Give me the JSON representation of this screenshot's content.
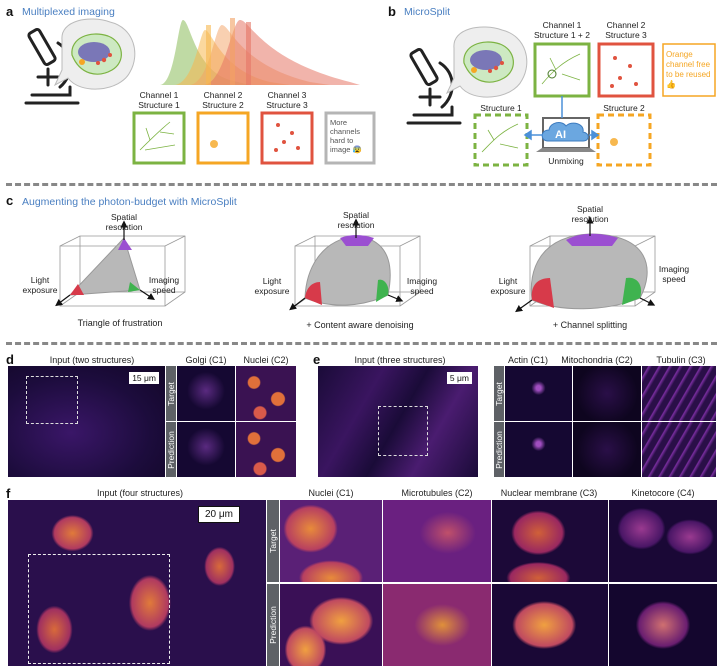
{
  "panels": {
    "a": {
      "letter": "a",
      "title": "Multiplexed imaging",
      "channels": [
        {
          "ch": "Channel 1",
          "st": "Structure 1"
        },
        {
          "ch": "Channel 2",
          "st": "Structure 2"
        },
        {
          "ch": "Channel 3",
          "st": "Structure 3"
        }
      ],
      "more_text": "More channels hard to image 😰"
    },
    "b": {
      "letter": "b",
      "title": "MicroSplit",
      "ch1": "Channel 1",
      "st12": "Structure 1 + 2",
      "ch2": "Channel 2",
      "st3": "Structure 3",
      "orange_note": "Orange channel free to be reused 👍",
      "st1": "Structure 1",
      "st2": "Structure 2",
      "ai": "AI",
      "unmixing": "Unmixing"
    },
    "c": {
      "letter": "c",
      "title": "Augmenting the photon-budget with MicroSplit",
      "axis_top": "Spatial resolution",
      "axis_left": "Light exposure",
      "axis_right": "Imaging speed",
      "caption1": "Triangle of frustration",
      "caption2": "+ Content aware denoising",
      "caption3": "+ Channel splitting"
    },
    "d": {
      "letter": "d",
      "input": "Input (two structures)",
      "scale": "15 μm",
      "cols": [
        "Golgi (C1)",
        "Nuclei (C2)"
      ],
      "rows": [
        "Target",
        "Prediction"
      ]
    },
    "e": {
      "letter": "e",
      "input": "Input (three structures)",
      "scale": "5 μm",
      "cols": [
        "Actin (C1)",
        "Mitochondria (C2)",
        "Tubulin (C3)"
      ],
      "rows": [
        "Target",
        "Prediction"
      ]
    },
    "f": {
      "letter": "f",
      "input": "Input (four structures)",
      "scale": "20 μm",
      "cols": [
        "Nuclei (C1)",
        "Microtubules (C2)",
        "Nuclear membrane (C3)",
        "Kinetocore (C4)"
      ],
      "rows": [
        "Target",
        "Prediction"
      ]
    }
  },
  "colors": {
    "title_blue": "#4a7fc1",
    "green": "#7cb342",
    "orange": "#f5a623",
    "red": "#e0533f",
    "grey_box": "#b5b5b5",
    "purple": "#9b4fd1",
    "image_bg": "#170a32",
    "separator": "#888888"
  },
  "icons": [
    "microscope-icon",
    "cell-icon",
    "ai-cloud-icon",
    "laptop-icon",
    "arrow-icon"
  ]
}
